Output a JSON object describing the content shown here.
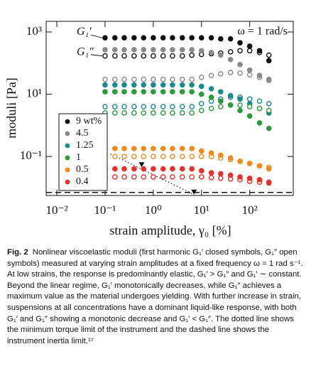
{
  "chart_data": {
    "type": "scatter",
    "xlabel": "strain amplitude, γ₀ [%]",
    "ylabel": "moduli [Pa]",
    "log_x": true,
    "log_y": true,
    "xlim": [
      0.006,
      800
    ],
    "ylim": [
      0.0056,
      2200
    ],
    "xticks": [
      {
        "value": 0.01,
        "label": "10⁻²"
      },
      {
        "value": 0.1,
        "label": "10⁻¹"
      },
      {
        "value": 1,
        "label": "10⁰"
      },
      {
        "value": 10,
        "label": "10¹"
      },
      {
        "value": 100,
        "label": "10²"
      }
    ],
    "yticks": [
      {
        "value": 0.1,
        "label": "10⁻¹"
      },
      {
        "value": 10,
        "label": "10¹"
      },
      {
        "value": 1000,
        "label": "10³"
      }
    ],
    "annotations": [
      "G₁′",
      "G₁″",
      "ω = 1 rad/s"
    ],
    "legend": "lower left",
    "inertia_limit": 0.007,
    "torque_limit": {
      "x": [
        0.13,
        7
      ],
      "y": [
        0.12,
        0.006
      ]
    },
    "x": [
      0.1,
      0.16,
      0.25,
      0.4,
      0.63,
      1,
      1.6,
      2.5,
      4,
      6.3,
      10,
      16,
      25,
      40,
      63,
      100,
      160,
      250
    ],
    "series": [
      {
        "name": "9 wt%",
        "color": "#111111",
        "storage": [
          650,
          650,
          650,
          650,
          650,
          650,
          650,
          650,
          650,
          650,
          650,
          650,
          600,
          600,
          450,
          350,
          250,
          120
        ],
        "loss": [
          170,
          170,
          170,
          170,
          170,
          170,
          170,
          170,
          170,
          180,
          190,
          200,
          210,
          230,
          250,
          250,
          220,
          180
        ]
      },
      {
        "name": "4.5",
        "color": "#8a8a8a",
        "storage": [
          270,
          270,
          270,
          270,
          270,
          270,
          270,
          270,
          270,
          270,
          250,
          220,
          180,
          130,
          90,
          60,
          40,
          30
        ],
        "loss": [
          30,
          30,
          30,
          30,
          30,
          30,
          30,
          30,
          30,
          30,
          35,
          40,
          45,
          50,
          48,
          42,
          35,
          28
        ]
      },
      {
        "name": "1.25",
        "color": "#1a8a8a",
        "storage": [
          20,
          20,
          20,
          20,
          20,
          20,
          20,
          20,
          20,
          20,
          18,
          15,
          12,
          9,
          7,
          5,
          3.5,
          2.5
        ],
        "loss": [
          4,
          4,
          4,
          4,
          4,
          4,
          4,
          4,
          4,
          4,
          5,
          6,
          7,
          8,
          8,
          7,
          6,
          5
        ]
      },
      {
        "name": "1",
        "color": "#2a9a3a",
        "storage": [
          12,
          12,
          12,
          12,
          12,
          12,
          12,
          12,
          12,
          12,
          10,
          8,
          6,
          4.5,
          3,
          2,
          1.2,
          0.8
        ],
        "loss": [
          2.5,
          2.5,
          2.5,
          2.5,
          2.5,
          2.5,
          2.5,
          2.5,
          2.5,
          2.5,
          3,
          3.5,
          4,
          4.5,
          4.5,
          4,
          3.5,
          3
        ]
      },
      {
        "name": "0.5",
        "color": "#f08a1c",
        "storage": [
          0.18,
          0.18,
          0.18,
          0.18,
          0.18,
          0.18,
          0.18,
          0.18,
          0.18,
          0.18,
          0.15,
          0.13,
          0.11,
          0.09,
          0.07,
          0.06,
          0.05,
          0.04
        ],
        "loss": [
          0.1,
          0.1,
          0.1,
          0.1,
          0.1,
          0.1,
          0.1,
          0.1,
          0.1,
          0.1,
          0.1,
          0.1,
          0.09,
          0.08,
          0.07,
          0.06,
          0.05,
          0.045
        ]
      },
      {
        "name": "0.4",
        "color": "#e8302a",
        "storage": [
          0.04,
          0.04,
          0.04,
          0.04,
          0.04,
          0.04,
          0.04,
          0.04,
          0.04,
          0.04,
          0.035,
          0.03,
          0.028,
          0.025,
          0.022,
          0.02,
          0.018,
          0.015
        ],
        "loss": [
          0.022,
          0.022,
          0.022,
          0.022,
          0.022,
          0.022,
          0.022,
          0.022,
          0.022,
          0.022,
          0.022,
          0.021,
          0.02,
          0.019,
          0.018,
          0.016,
          0.015,
          0.014
        ]
      }
    ]
  },
  "caption": {
    "label": "Fig. 2",
    "text": "Nonlinear viscoelastic moduli (first harmonic G₁′ closed symbols, G₁″ open symbols) measured at varying strain amplitudes at a fixed frequency ω = 1 rad s⁻¹. At low strains, the response is predominantly elastic, G₁′ > G₁″ and G₁′ ∼ constant. Beyond the linear regime, G₁′ monotonically decreases, while G₁″ achieves a maximum value as the material undergoes yielding. With further increase in strain, suspensions at all concentrations have a dominant liquid-like response, with both G₁′ and G₁″ showing a monotonic decrease and G₁′ < G₁″. The dotted line shows the minimum torque limit of the instrument and the dashed line shows the instrument inertia limit.¹⁷"
  }
}
